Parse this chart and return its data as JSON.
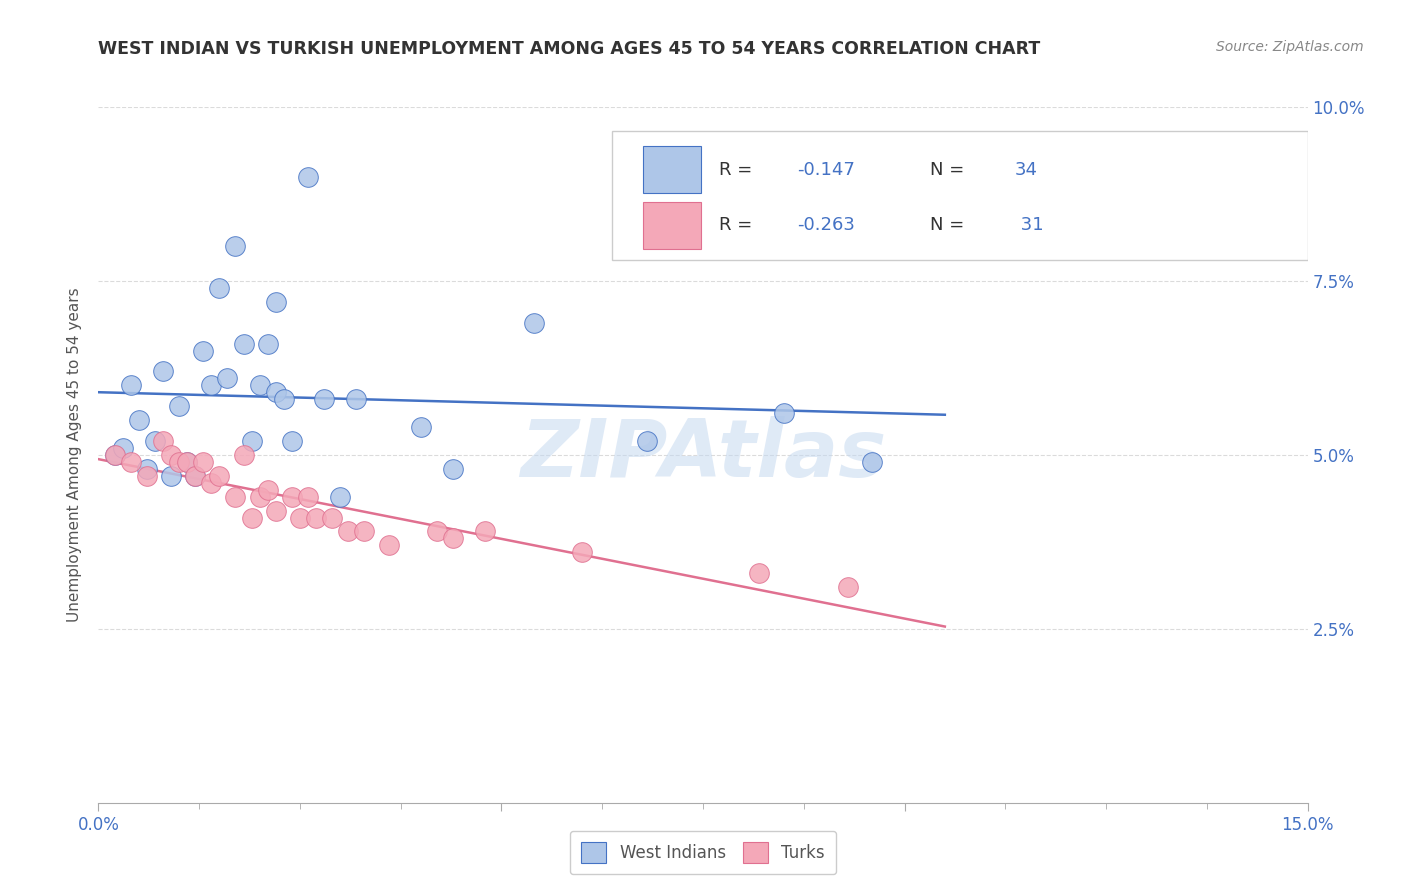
{
  "title": "WEST INDIAN VS TURKISH UNEMPLOYMENT AMONG AGES 45 TO 54 YEARS CORRELATION CHART",
  "source": "Source: ZipAtlas.com",
  "ylabel": "Unemployment Among Ages 45 to 54 years",
  "xlim": [
    0,
    0.15
  ],
  "ylim": [
    0,
    0.1
  ],
  "west_indian_color": "#aec6e8",
  "turk_color": "#f4a8b8",
  "west_indian_line_color": "#4472c4",
  "turk_line_color": "#e07090",
  "legend_R_wi": "-0.147",
  "legend_N_wi": "34",
  "legend_R_tk": "-0.263",
  "legend_N_tk": "31",
  "west_indian_x": [
    0.002,
    0.003,
    0.004,
    0.005,
    0.006,
    0.007,
    0.008,
    0.009,
    0.01,
    0.011,
    0.012,
    0.013,
    0.014,
    0.015,
    0.016,
    0.017,
    0.018,
    0.019,
    0.02,
    0.021,
    0.022,
    0.022,
    0.023,
    0.024,
    0.026,
    0.028,
    0.03,
    0.032,
    0.04,
    0.044,
    0.054,
    0.068,
    0.085,
    0.096
  ],
  "west_indian_y": [
    0.05,
    0.051,
    0.06,
    0.055,
    0.048,
    0.052,
    0.062,
    0.047,
    0.057,
    0.049,
    0.047,
    0.065,
    0.06,
    0.074,
    0.061,
    0.08,
    0.066,
    0.052,
    0.06,
    0.066,
    0.059,
    0.072,
    0.058,
    0.052,
    0.09,
    0.058,
    0.044,
    0.058,
    0.054,
    0.048,
    0.069,
    0.052,
    0.056,
    0.049
  ],
  "turk_x": [
    0.002,
    0.004,
    0.006,
    0.008,
    0.009,
    0.01,
    0.011,
    0.012,
    0.013,
    0.014,
    0.015,
    0.017,
    0.018,
    0.019,
    0.02,
    0.021,
    0.022,
    0.024,
    0.025,
    0.026,
    0.027,
    0.029,
    0.031,
    0.033,
    0.036,
    0.042,
    0.044,
    0.048,
    0.06,
    0.082,
    0.093
  ],
  "turk_y": [
    0.05,
    0.049,
    0.047,
    0.052,
    0.05,
    0.049,
    0.049,
    0.047,
    0.049,
    0.046,
    0.047,
    0.044,
    0.05,
    0.041,
    0.044,
    0.045,
    0.042,
    0.044,
    0.041,
    0.044,
    0.041,
    0.041,
    0.039,
    0.039,
    0.037,
    0.039,
    0.038,
    0.039,
    0.036,
    0.033,
    0.031
  ],
  "background_color": "#ffffff",
  "grid_color": "#cccccc"
}
